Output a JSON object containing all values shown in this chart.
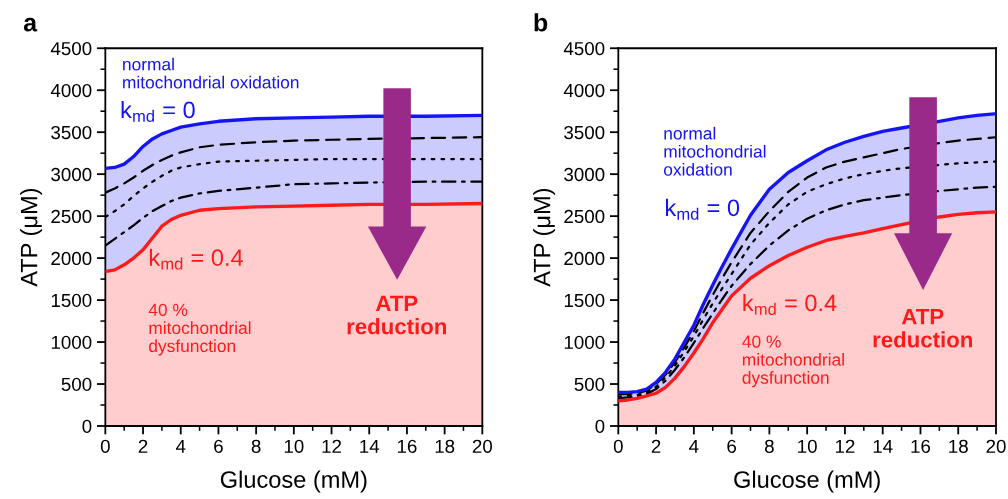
{
  "chart_data": [
    {
      "type": "line",
      "title": "a",
      "xlabel": "Glucose (mM)",
      "ylabel": "ATP (μM)",
      "grid": false,
      "x": [
        0,
        0.5,
        1,
        1.5,
        2,
        2.5,
        3,
        3.5,
        4,
        5,
        6,
        8,
        10,
        12,
        14,
        17,
        20
      ],
      "series": [
        {
          "name": "k$_{md}$ = 0",
          "type": "area",
          "color": "#1414f5",
          "line_style": "solid",
          "values": [
            3070,
            3080,
            3120,
            3210,
            3330,
            3420,
            3480,
            3520,
            3560,
            3600,
            3630,
            3660,
            3670,
            3680,
            3690,
            3690,
            3700
          ]
        },
        {
          "color": "#000000",
          "line_style": "dashed",
          "values": [
            2780,
            2830,
            2890,
            2960,
            3040,
            3110,
            3170,
            3220,
            3260,
            3320,
            3350,
            3380,
            3400,
            3410,
            3420,
            3430,
            3440
          ]
        },
        {
          "color": "#000000",
          "line_style": "dotted",
          "values": [
            2490,
            2560,
            2640,
            2740,
            2830,
            2910,
            2980,
            3040,
            3080,
            3120,
            3150,
            3160,
            3170,
            3180,
            3180,
            3180,
            3180
          ]
        },
        {
          "color": "#000000",
          "line_style": "dashdot",
          "values": [
            2150,
            2230,
            2310,
            2390,
            2480,
            2560,
            2620,
            2680,
            2720,
            2770,
            2800,
            2840,
            2880,
            2890,
            2900,
            2910,
            2910
          ]
        },
        {
          "name": "k$_{md}$ = 0.4",
          "type": "area",
          "color": "#ff1a1a",
          "line_style": "solid",
          "values": [
            1840,
            1860,
            1920,
            2000,
            2100,
            2240,
            2380,
            2460,
            2510,
            2570,
            2590,
            2610,
            2620,
            2630,
            2640,
            2640,
            2650
          ]
        }
      ],
      "xlim": [
        0,
        20
      ],
      "ylim": [
        0,
        4500
      ],
      "xticks": [
        0,
        {
          "value": 1,
          "label": null
        },
        2,
        {
          "value": 3,
          "label": null
        },
        4,
        {
          "value": 5,
          "label": null
        },
        6,
        {
          "value": 7,
          "label": null
        },
        8,
        {
          "value": 9,
          "label": null
        },
        10,
        {
          "value": 11,
          "label": null
        },
        12,
        {
          "value": 13,
          "label": null
        },
        14,
        {
          "value": 15,
          "label": null
        },
        16,
        {
          "value": 17,
          "label": null
        },
        18,
        {
          "value": 19,
          "label": null
        },
        20
      ],
      "yticks": [
        0,
        {
          "value": 250,
          "label": null
        },
        500,
        {
          "value": 750,
          "label": null
        },
        1000,
        {
          "value": 1250,
          "label": null
        },
        1500,
        {
          "value": 1750,
          "label": null
        },
        2000,
        {
          "value": 2250,
          "label": null
        },
        2500,
        {
          "value": 2750,
          "label": null
        },
        3000,
        {
          "value": 3250,
          "label": null
        },
        3500,
        {
          "value": 3750,
          "label": null
        },
        4000,
        {
          "value": 4250,
          "label": null
        },
        4500
      ],
      "annotations": [
        "normal\nmitochondrial oxidation",
        "40 %\nmitochondrial\ndysfunction",
        "ATP\nreduction"
      ]
    },
    {
      "type": "line",
      "title": "b",
      "xlabel": "Glucose (mM)",
      "ylabel": "ATP (μM)",
      "grid": false,
      "x": [
        0,
        0.5,
        1,
        1.5,
        2,
        2.5,
        3,
        3.5,
        4,
        4.5,
        5,
        5.5,
        6,
        7,
        8,
        9,
        10,
        11,
        12,
        13,
        14,
        15,
        17,
        18,
        19,
        20
      ],
      "series": [
        {
          "name": "k$_{md}$ = 0",
          "type": "area",
          "color": "#1414f5",
          "line_style": "solid",
          "values": [
            400,
            400,
            410,
            440,
            520,
            640,
            800,
            1000,
            1200,
            1450,
            1680,
            1900,
            2110,
            2510,
            2820,
            3020,
            3160,
            3290,
            3380,
            3450,
            3510,
            3550,
            3630,
            3670,
            3700,
            3720
          ]
        },
        {
          "color": "#000000",
          "line_style": "dashed",
          "values": [
            380,
            380,
            390,
            420,
            500,
            610,
            760,
            940,
            1130,
            1350,
            1560,
            1760,
            1950,
            2300,
            2560,
            2790,
            2960,
            3080,
            3150,
            3200,
            3250,
            3300,
            3370,
            3400,
            3420,
            3440
          ]
        },
        {
          "color": "#000000",
          "line_style": "dotted",
          "values": [
            350,
            360,
            370,
            400,
            470,
            580,
            720,
            890,
            1070,
            1270,
            1460,
            1640,
            1810,
            2160,
            2420,
            2640,
            2790,
            2880,
            2950,
            3000,
            3040,
            3070,
            3110,
            3130,
            3140,
            3150
          ]
        },
        {
          "color": "#000000",
          "line_style": "dashdot",
          "values": [
            330,
            340,
            350,
            380,
            440,
            540,
            670,
            820,
            990,
            1170,
            1340,
            1510,
            1670,
            1930,
            2150,
            2330,
            2470,
            2570,
            2640,
            2690,
            2720,
            2750,
            2800,
            2820,
            2840,
            2850
          ]
        },
        {
          "name": "k$_{md}$ = 0.4",
          "type": "area",
          "color": "#ff1a1a",
          "line_style": "solid",
          "values": [
            300,
            310,
            330,
            360,
            390,
            460,
            570,
            710,
            870,
            1040,
            1230,
            1390,
            1550,
            1760,
            1910,
            2030,
            2130,
            2210,
            2260,
            2300,
            2350,
            2400,
            2490,
            2520,
            2540,
            2550
          ]
        }
      ],
      "xlim": [
        0,
        20
      ],
      "ylim": [
        0,
        4500
      ],
      "xticks": [
        0,
        {
          "value": 1,
          "label": null
        },
        2,
        {
          "value": 3,
          "label": null
        },
        4,
        {
          "value": 5,
          "label": null
        },
        6,
        {
          "value": 7,
          "label": null
        },
        8,
        {
          "value": 9,
          "label": null
        },
        10,
        {
          "value": 11,
          "label": null
        },
        12,
        {
          "value": 13,
          "label": null
        },
        14,
        {
          "value": 15,
          "label": null
        },
        16,
        {
          "value": 17,
          "label": null
        },
        18,
        {
          "value": 19,
          "label": null
        },
        20
      ],
      "yticks": [
        0,
        {
          "value": 250,
          "label": null
        },
        500,
        {
          "value": 750,
          "label": null
        },
        1000,
        {
          "value": 1250,
          "label": null
        },
        1500,
        {
          "value": 1750,
          "label": null
        },
        2000,
        {
          "value": 2250,
          "label": null
        },
        2500,
        {
          "value": 2750,
          "label": null
        },
        3000,
        {
          "value": 3250,
          "label": null
        },
        3500,
        {
          "value": 3750,
          "label": null
        },
        4000,
        {
          "value": 4250,
          "label": null
        },
        4500
      ],
      "annotations": [
        "normal\nmitochondrial\noxidation",
        "40 %\nmitochondrial\ndysfunction",
        "ATP\nreduction"
      ]
    }
  ]
}
